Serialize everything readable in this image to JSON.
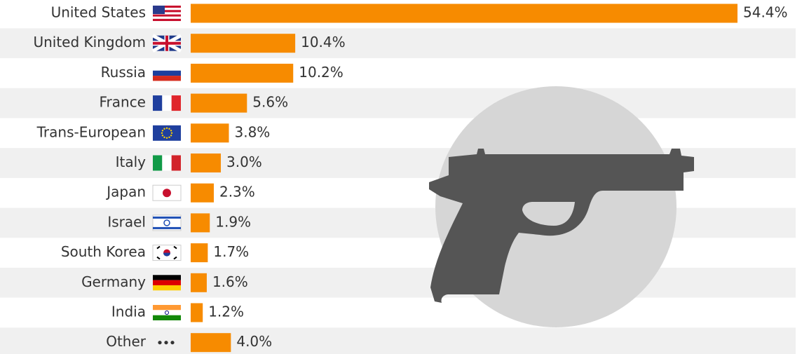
{
  "chart_data": {
    "type": "bar",
    "orientation": "horizontal",
    "categories": [
      "United States",
      "United Kingdom",
      "Russia",
      "France",
      "Trans-European",
      "Italy",
      "Japan",
      "Israel",
      "South Korea",
      "Germany",
      "India",
      "Other"
    ],
    "values": [
      54.4,
      10.4,
      10.2,
      5.6,
      3.8,
      3.0,
      2.3,
      1.9,
      1.7,
      1.6,
      1.2,
      4.0
    ],
    "value_labels": [
      "54.4%",
      "10.4%",
      "10.2%",
      "5.6%",
      "3.8%",
      "3.0%",
      "2.3%",
      "1.9%",
      "1.7%",
      "1.6%",
      "1.2%",
      "4.0%"
    ],
    "color": "#f78b00"
  }
}
